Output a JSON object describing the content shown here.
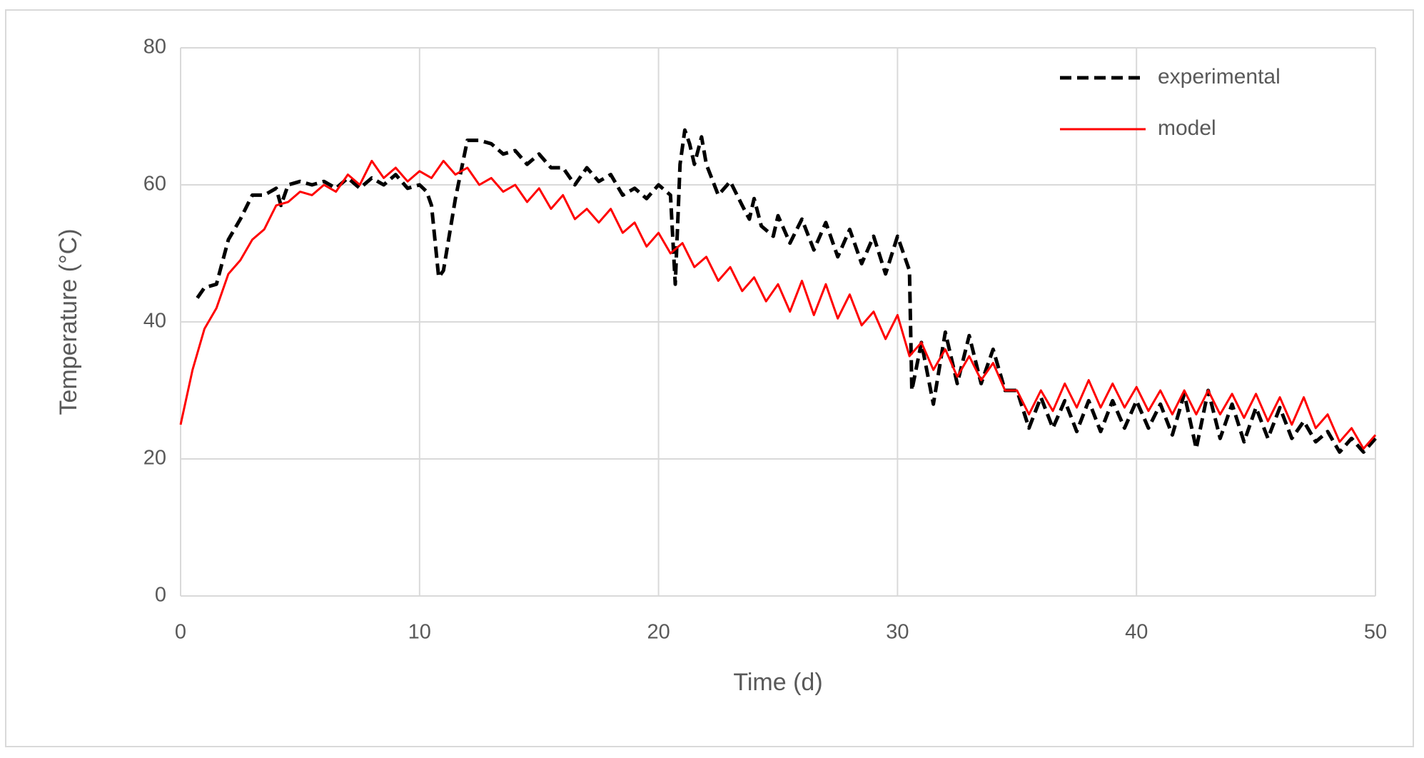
{
  "chart_data": {
    "type": "line",
    "xlabel": "Time (d)",
    "ylabel": "Temperature (°C)",
    "xlim": [
      0,
      50
    ],
    "xticks": [
      0,
      10,
      20,
      30,
      40,
      50
    ],
    "ylim": [
      0,
      80
    ],
    "yticks": [
      0,
      20,
      40,
      60,
      80
    ],
    "grid": true,
    "legend": "upper right",
    "series": [
      {
        "name": "experimental",
        "color": "#000000",
        "dash": true,
        "x": [
          0.7,
          1,
          1.5,
          2,
          2.5,
          3,
          3.5,
          4,
          4.2,
          4.5,
          5,
          5.5,
          6,
          6.5,
          7,
          7.5,
          8,
          8.5,
          9,
          9.5,
          10,
          10.3,
          10.5,
          10.8,
          11,
          11.5,
          12,
          12.5,
          13,
          13.5,
          14,
          14.5,
          15,
          15.5,
          16,
          16.5,
          17,
          17.5,
          18,
          18.5,
          19,
          19.5,
          20,
          20.5,
          20.7,
          20.9,
          21.1,
          21.3,
          21.5,
          21.8,
          22,
          22.5,
          23,
          23.5,
          23.8,
          24,
          24.3,
          24.8,
          25,
          25.5,
          26,
          26.5,
          27,
          27.5,
          28,
          28.5,
          29,
          29.5,
          30,
          30.5,
          30.6,
          31,
          31.5,
          32,
          32.5,
          33,
          33.5,
          34,
          34.5,
          35,
          35.5,
          36,
          36.5,
          37,
          37.5,
          38,
          38.5,
          39,
          39.5,
          40,
          40.5,
          41,
          41.5,
          42,
          42.5,
          43,
          43.5,
          44,
          44.5,
          45,
          45.5,
          46,
          46.5,
          47,
          47.5,
          48,
          48.5,
          49,
          49.5,
          50
        ],
        "values": [
          43.5,
          45,
          45.5,
          52,
          55,
          58.5,
          58.5,
          59.5,
          57,
          60,
          60.5,
          60,
          60.5,
          59.5,
          61,
          59.5,
          61,
          60,
          61.5,
          59.5,
          60,
          59,
          57,
          46.5,
          47.5,
          58,
          66.5,
          66.5,
          66,
          64.5,
          65,
          63,
          64.5,
          62.5,
          62.5,
          60,
          62.5,
          60.5,
          61.5,
          58.5,
          59.5,
          58,
          60,
          58.5,
          45.5,
          63,
          68,
          66,
          63,
          67,
          63,
          58.5,
          60.5,
          57,
          55,
          58,
          54,
          52.5,
          55.5,
          51.5,
          55,
          50.5,
          54.5,
          49.5,
          53.5,
          48.5,
          52.5,
          47,
          52.5,
          47.5,
          30,
          37,
          28,
          38.5,
          31,
          38,
          31,
          36,
          30,
          30,
          24.5,
          29,
          24.5,
          28.5,
          24,
          28.5,
          24,
          28.5,
          24.5,
          28.5,
          24.5,
          28,
          23.5,
          29.5,
          21.5,
          30,
          23,
          28,
          22.5,
          27.5,
          23,
          27.5,
          23,
          25.5,
          22.5,
          24,
          21,
          23,
          21,
          23
        ]
      },
      {
        "name": "model",
        "color": "#ff0000",
        "dash": false,
        "x": [
          0,
          0.5,
          1,
          1.5,
          2,
          2.5,
          3,
          3.5,
          4,
          4.5,
          5,
          5.5,
          6,
          6.5,
          7,
          7.5,
          8,
          8.5,
          9,
          9.5,
          10,
          10.5,
          11,
          11.5,
          12,
          12.5,
          13,
          13.5,
          14,
          14.5,
          15,
          15.5,
          16,
          16.5,
          17,
          17.5,
          18,
          18.5,
          19,
          19.5,
          20,
          20.5,
          21,
          21.5,
          22,
          22.5,
          23,
          23.5,
          24,
          24.5,
          25,
          25.5,
          26,
          26.5,
          27,
          27.5,
          28,
          28.5,
          29,
          29.5,
          30,
          30.5,
          31,
          31.5,
          32,
          32.5,
          33,
          33.5,
          34,
          34.5,
          35,
          35.5,
          36,
          36.5,
          37,
          37.5,
          38,
          38.5,
          39,
          39.5,
          40,
          40.5,
          41,
          41.5,
          42,
          42.5,
          43,
          43.5,
          44,
          44.5,
          45,
          45.5,
          46,
          46.5,
          47,
          47.5,
          48,
          48.5,
          49,
          49.5,
          50
        ],
        "values": [
          25,
          33,
          39,
          42,
          47,
          49,
          52,
          53.5,
          57,
          57.5,
          59,
          58.5,
          60,
          59,
          61.5,
          60,
          63.5,
          61,
          62.5,
          60.5,
          62,
          61,
          63.5,
          61.5,
          62.5,
          60,
          61,
          59,
          60,
          57.5,
          59.5,
          56.5,
          58.5,
          55,
          56.5,
          54.5,
          56.5,
          53,
          54.5,
          51,
          53,
          50,
          51.5,
          48,
          49.5,
          46,
          48,
          44.5,
          46.5,
          43,
          45.5,
          41.5,
          46,
          41,
          45.5,
          40.5,
          44,
          39.5,
          41.5,
          37.5,
          41,
          35,
          37,
          33,
          36,
          32,
          35,
          31.5,
          34,
          30,
          30,
          26.5,
          30,
          27,
          31,
          27.5,
          31.5,
          27.5,
          31,
          27.5,
          30.5,
          27,
          30,
          26.5,
          30,
          26.5,
          30,
          26.5,
          29.5,
          26,
          29.5,
          25.5,
          29,
          25,
          29,
          24.5,
          26.5,
          22.5,
          24.5,
          21.5,
          23.5
        ]
      }
    ]
  }
}
